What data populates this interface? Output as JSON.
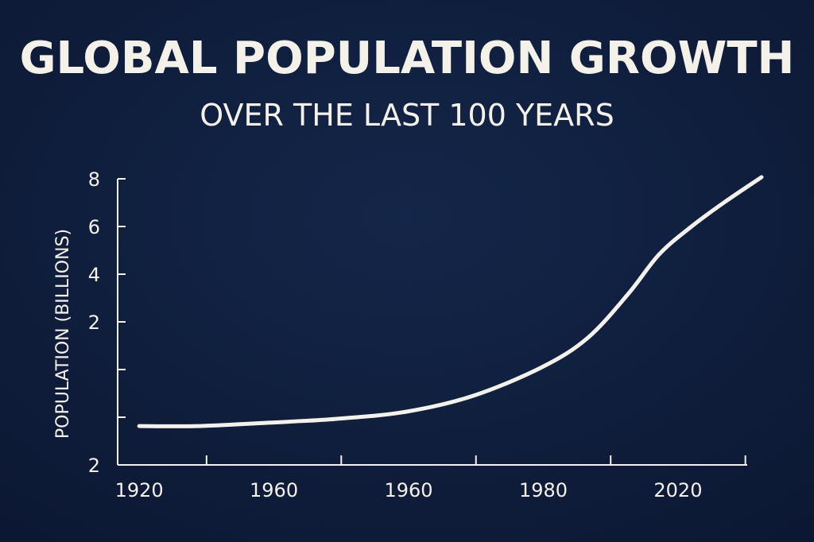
{
  "chart_data": {
    "type": "line",
    "title": "GLOBAL POPULATION GROWTH",
    "subtitle": "OVER THE LAST 100 YEARS",
    "y_label": "POPULATION (BILLIONS)",
    "categories": [
      "1920",
      "1960",
      "1960",
      "1980",
      "2020"
    ],
    "xlim": [
      -0.16,
      4.62
    ],
    "minor_xticks": [
      0.5,
      1.5,
      2.5,
      3.5,
      4.5
    ],
    "ylim": [
      -4,
      8
    ],
    "yticks": [
      2,
      4,
      6,
      8
    ],
    "minor_yticks": [
      -2,
      0
    ],
    "origin_label": "2",
    "color": "#f4f1e8",
    "x": [
      0,
      0.44,
      0.96,
      1.46,
      1.98,
      2.48,
      2.99,
      3.33,
      3.63,
      3.86,
      4.1,
      4.34,
      4.62
    ],
    "values": [
      -2.37,
      -2.37,
      -2.23,
      -2.07,
      -1.77,
      -1.1,
      0.1,
      1.33,
      3.17,
      4.83,
      6.0,
      7.0,
      8.07
    ]
  }
}
